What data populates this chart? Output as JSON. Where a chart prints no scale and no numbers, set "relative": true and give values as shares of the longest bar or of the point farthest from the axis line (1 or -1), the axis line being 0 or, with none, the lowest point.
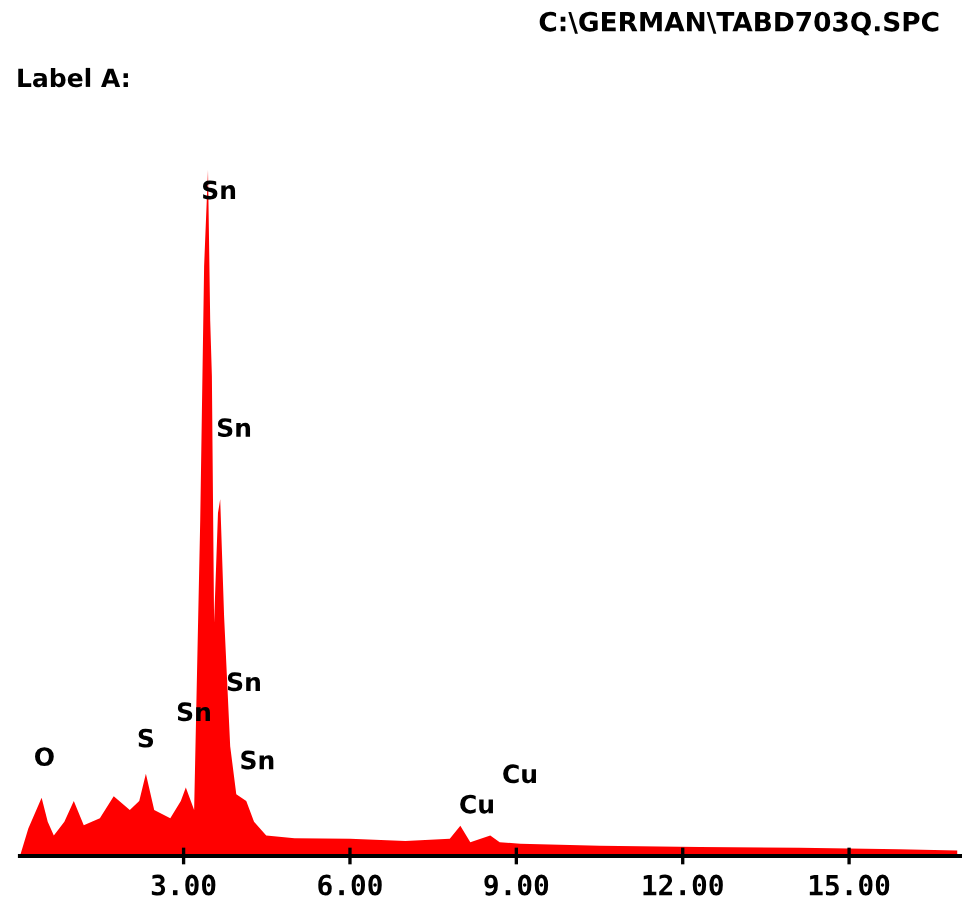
{
  "chart_data": {
    "type": "area",
    "relative": true,
    "title": "C:\\GERMAN\\TABD703Q.SPC",
    "subtitle": "Label A:",
    "x": [
      0.05,
      0.2,
      0.44,
      0.55,
      0.66,
      0.85,
      1.02,
      1.2,
      1.49,
      1.74,
      2.03,
      2.2,
      2.32,
      2.47,
      2.76,
      2.95,
      3.04,
      3.19,
      3.3,
      3.37,
      3.44,
      3.48,
      3.51,
      3.55,
      3.62,
      3.66,
      3.73,
      3.84,
      3.95,
      4.13,
      4.27,
      4.49,
      5.0,
      6.0,
      7.0,
      7.8,
      7.99,
      8.17,
      8.53,
      8.7,
      9.07,
      10.5,
      12.3,
      14.1,
      15.9,
      16.95
    ],
    "series": [
      {
        "color": "#ff0000",
        "values": [
          0.0,
          0.04,
          0.085,
          0.05,
          0.03,
          0.05,
          0.08,
          0.045,
          0.055,
          0.087,
          0.067,
          0.08,
          0.12,
          0.067,
          0.055,
          0.08,
          0.1,
          0.067,
          0.49,
          0.86,
          1.0,
          0.78,
          0.7,
          0.34,
          0.5,
          0.52,
          0.35,
          0.16,
          0.09,
          0.08,
          0.05,
          0.03,
          0.026,
          0.025,
          0.022,
          0.025,
          0.044,
          0.02,
          0.03,
          0.02,
          0.018,
          0.015,
          0.013,
          0.012,
          0.01,
          0.008
        ]
      }
    ],
    "xlim": [
      0.05,
      17.0
    ],
    "xticks": [
      {
        "value": 3,
        "label": "3.00"
      },
      {
        "value": 6,
        "label": "6.00"
      },
      {
        "value": 9,
        "label": "9.00"
      },
      {
        "value": 12,
        "label": "12.00"
      },
      {
        "value": 15,
        "label": "15.00"
      }
    ],
    "annotations": [
      {
        "text": "Sn",
        "x": 3.44,
        "y": 1.0
      },
      {
        "text": "Sn",
        "x": 3.66,
        "y": 0.52
      },
      "Sn",
      "Sn",
      {
        "text": "Sn",
        "x": 4.13,
        "y": 0.08
      },
      {
        "text": "S",
        "x": 2.32,
        "y": 0.12
      },
      {
        "text": "O",
        "x": 0.44,
        "y": 0.085
      },
      {
        "text": "Cu",
        "x": 7.99,
        "y": 0.044
      },
      "Cu"
    ],
    "grid": false
  }
}
